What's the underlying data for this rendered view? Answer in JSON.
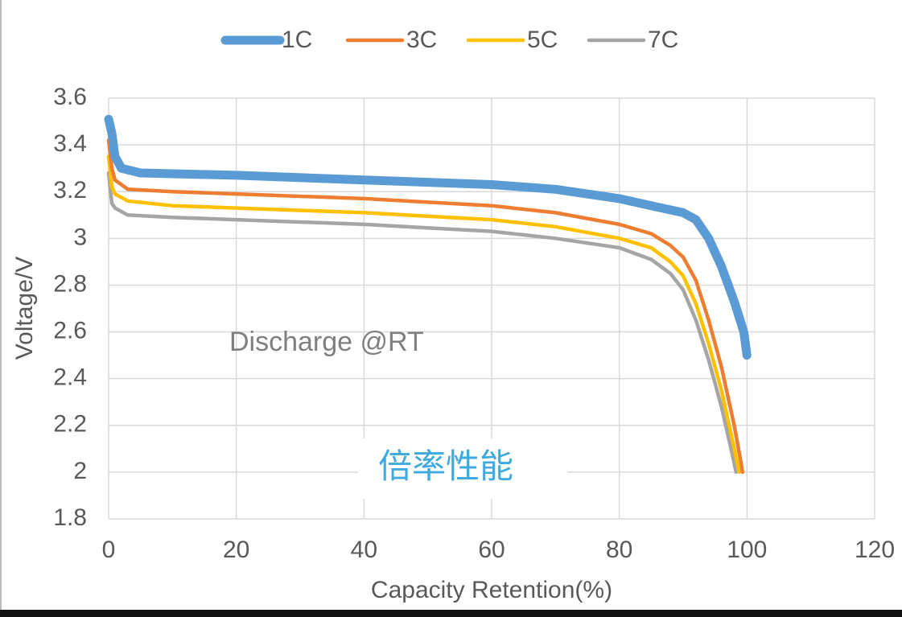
{
  "chart_data": {
    "type": "line",
    "xlabel": "Capacity Retention(%)",
    "ylabel": "Voltage/V",
    "xlim": [
      0,
      120
    ],
    "xticks": [
      0,
      20,
      40,
      60,
      80,
      100,
      120
    ],
    "ylim": [
      1.8,
      3.6
    ],
    "yticks": [
      1.8,
      2,
      2.2,
      2.4,
      2.6,
      2.8,
      3,
      3.2,
      3.4,
      3.6
    ],
    "grid": true,
    "legend": "top",
    "annotations": [
      "Discharge @RT",
      "倍率性能"
    ],
    "series": [
      {
        "name": "1C",
        "color": "#5b9bd5",
        "x": [
          0,
          0.5,
          1,
          2,
          5,
          20,
          40,
          60,
          70,
          80,
          85,
          90,
          92,
          94,
          96,
          98,
          99.5,
          100
        ],
        "values": [
          3.51,
          3.45,
          3.35,
          3.3,
          3.28,
          3.27,
          3.25,
          3.23,
          3.21,
          3.17,
          3.14,
          3.11,
          3.08,
          3.0,
          2.88,
          2.73,
          2.6,
          2.5
        ]
      },
      {
        "name": "3C",
        "color": "#ed7d31",
        "x": [
          0,
          0.5,
          1,
          3,
          10,
          20,
          40,
          60,
          70,
          80,
          85,
          88,
          90,
          92,
          94,
          96,
          98,
          99,
          99.3
        ],
        "values": [
          3.42,
          3.3,
          3.25,
          3.21,
          3.2,
          3.19,
          3.17,
          3.14,
          3.11,
          3.06,
          3.02,
          2.97,
          2.92,
          2.82,
          2.65,
          2.45,
          2.2,
          2.05,
          2.0
        ]
      },
      {
        "name": "5C",
        "color": "#ffc000",
        "x": [
          0,
          0.5,
          1,
          3,
          10,
          20,
          40,
          60,
          70,
          80,
          85,
          88,
          90,
          92,
          94,
          96,
          98,
          98.8
        ],
        "values": [
          3.35,
          3.22,
          3.19,
          3.16,
          3.14,
          3.13,
          3.11,
          3.08,
          3.05,
          3.0,
          2.96,
          2.9,
          2.84,
          2.72,
          2.55,
          2.35,
          2.1,
          2.0
        ]
      },
      {
        "name": "7C",
        "color": "#a5a5a5",
        "x": [
          0,
          0.5,
          1,
          3,
          10,
          20,
          40,
          60,
          70,
          80,
          85,
          88,
          90,
          92,
          94,
          96,
          97.5,
          98.3
        ],
        "values": [
          3.28,
          3.15,
          3.13,
          3.1,
          3.09,
          3.08,
          3.06,
          3.03,
          3.0,
          2.96,
          2.91,
          2.85,
          2.78,
          2.65,
          2.48,
          2.28,
          2.1,
          2.0
        ]
      }
    ]
  }
}
